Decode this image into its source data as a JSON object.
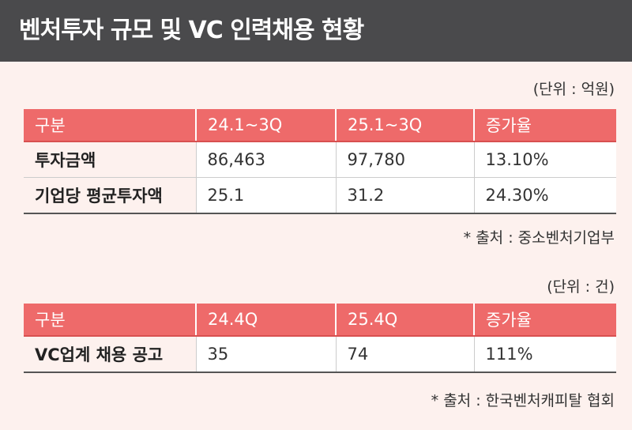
{
  "header": {
    "title": "벤처투자 규모 및 VC 인력채용 현황"
  },
  "tables": [
    {
      "unit": "(단위 : 억원)",
      "columns": [
        "구분",
        "24.1~3Q",
        "25.1~3Q",
        "증가율"
      ],
      "rows": [
        [
          "투자금액",
          "86,463",
          "97,780",
          "13.10%"
        ],
        [
          "기업당 평균투자액",
          "25.1",
          "31.2",
          "24.30%"
        ]
      ],
      "source": "* 출처 : 중소벤처기업부"
    },
    {
      "unit": "(단위 : 건)",
      "columns": [
        "구분",
        "24.4Q",
        "25.4Q",
        "증가율"
      ],
      "rows": [
        [
          "VC업계 채용 공고",
          "35",
          "74",
          "111%"
        ]
      ],
      "source": "* 출처 : 한국벤처캐피탈 협회"
    }
  ]
}
